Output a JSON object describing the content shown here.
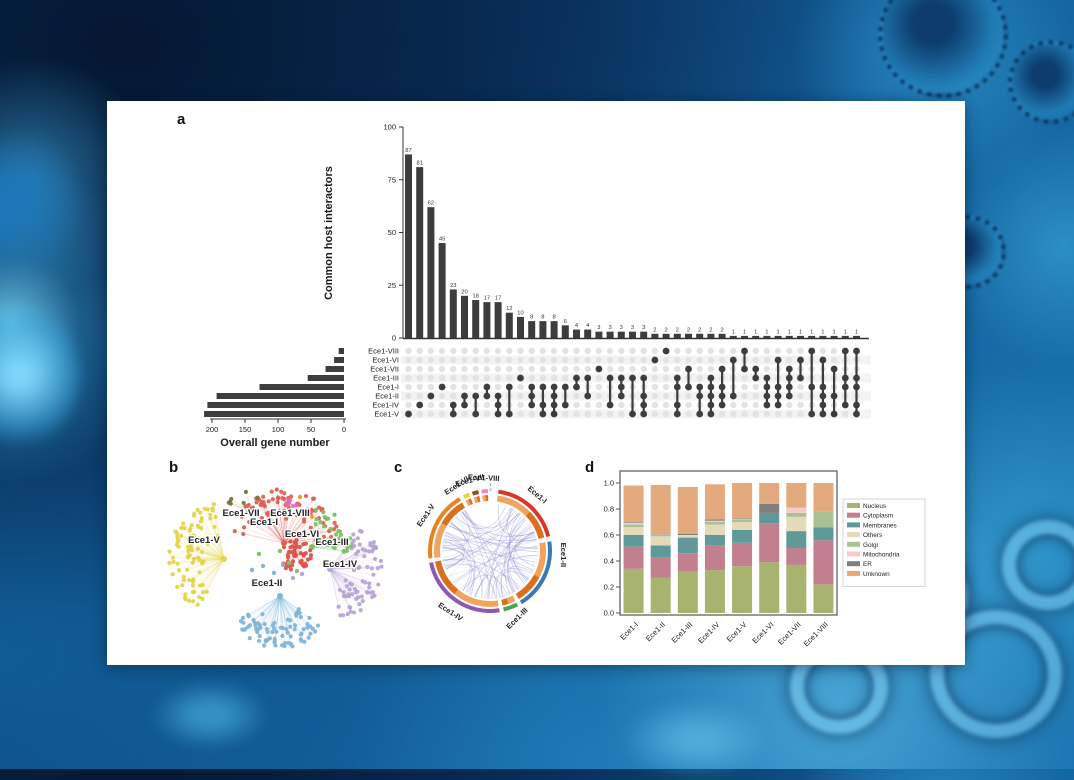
{
  "figure": {
    "panel_letters": {
      "a": "a",
      "b": "b",
      "c": "c",
      "d": "d"
    }
  },
  "chart_data": [
    {
      "id": "panel_a_upset",
      "type": "bar",
      "subtype": "upset",
      "panel_label": "a",
      "ylabel": "Common host interactors",
      "ylim": [
        0,
        100
      ],
      "yticks": [
        100,
        75,
        50,
        25,
        0
      ],
      "intersection_sizes": [
        87,
        81,
        62,
        45,
        23,
        20,
        18,
        17,
        17,
        12,
        10,
        8,
        8,
        8,
        6,
        4,
        4,
        3,
        3,
        3,
        3,
        3,
        2,
        2,
        2,
        2,
        2,
        2,
        2,
        1,
        1,
        1,
        1,
        1,
        1,
        1,
        1,
        1,
        1,
        1,
        1
      ],
      "memberships": [
        [
          7
        ],
        [
          6
        ],
        [
          5
        ],
        [
          4
        ],
        [
          6,
          7
        ],
        [
          5,
          6
        ],
        [
          5,
          7
        ],
        [
          4,
          5
        ],
        [
          5,
          6,
          7
        ],
        [
          4,
          7
        ],
        [
          3
        ],
        [
          4,
          5,
          6
        ],
        [
          4,
          6,
          7
        ],
        [
          4,
          5,
          6,
          7
        ],
        [
          4,
          6
        ],
        [
          3,
          4
        ],
        [
          3,
          5
        ],
        [
          2
        ],
        [
          3,
          6
        ],
        [
          3,
          4,
          5
        ],
        [
          3,
          7
        ],
        [
          3,
          5,
          6,
          7
        ],
        [
          1
        ],
        [
          0
        ],
        [
          3,
          4,
          6,
          7
        ],
        [
          2,
          4
        ],
        [
          4,
          5,
          7
        ],
        [
          3,
          4,
          5,
          6,
          7
        ],
        [
          2,
          4,
          5,
          6
        ],
        [
          1,
          5
        ],
        [
          0,
          2
        ],
        [
          2,
          3
        ],
        [
          3,
          4,
          5,
          6
        ],
        [
          1,
          4,
          5,
          6
        ],
        [
          2,
          3,
          4,
          5
        ],
        [
          1,
          3
        ],
        [
          0,
          4,
          7
        ],
        [
          1,
          4,
          5,
          6,
          7
        ],
        [
          2,
          5,
          7
        ],
        [
          0,
          3,
          4,
          6
        ],
        [
          0,
          3,
          4,
          6,
          7
        ]
      ],
      "sets": [
        {
          "label": "Ece1-VIII",
          "size": 8
        },
        {
          "label": "Ece1-VI",
          "size": 15
        },
        {
          "label": "Ece1-VII",
          "size": 28
        },
        {
          "label": "Ece1-III",
          "size": 55
        },
        {
          "label": "Ece1-I",
          "size": 128
        },
        {
          "label": "Ece1-II",
          "size": 193
        },
        {
          "label": "Ece1-IV",
          "size": 207
        },
        {
          "label": "Ece1-V",
          "size": 212
        }
      ],
      "set_axis_label": "Overall gene number",
      "set_ticks": [
        200,
        150,
        100,
        50,
        0
      ],
      "bar_color": "#3d3d3d",
      "dot_inactive_color": "#e3e3e3",
      "stripe_color": "#f3f3f3"
    },
    {
      "id": "panel_b_network",
      "type": "scatter",
      "subtype": "network",
      "panel_label": "b",
      "clusters": [
        {
          "label": "Ece1-V",
          "color": "#e3d44d",
          "hub": [
            62,
            106
          ],
          "angles": [
            115,
            260
          ],
          "radius": [
            16,
            56
          ],
          "count": 88,
          "label_xy": [
            42,
            90
          ]
        },
        {
          "label": "Ece1-IV",
          "color": "#b7a4d8",
          "hub": [
            168,
            116
          ],
          "angles": [
            -65,
            80
          ],
          "radius": [
            16,
            52
          ],
          "count": 75,
          "label_xy": [
            178,
            114
          ]
        },
        {
          "label": "Ece1-II",
          "color": "#82b5da",
          "hub": [
            118,
            143
          ],
          "angles": [
            30,
            150
          ],
          "radius": [
            16,
            52
          ],
          "count": 80,
          "label_xy": [
            105,
            133
          ]
        },
        {
          "label": "Ece1-I",
          "color": "#e06055",
          "hub": [
            122,
            90
          ],
          "angles": [
            -178,
            -2
          ],
          "radius": [
            18,
            55
          ],
          "count": 82,
          "label_xy": [
            102,
            72
          ]
        },
        {
          "label": "Ece1-III",
          "color": "#7cc163",
          "hub": [
            150,
            94
          ],
          "angles": [
            -88,
            10
          ],
          "radius": [
            10,
            40
          ],
          "count": 26,
          "label_xy": [
            170,
            92
          ]
        },
        {
          "label": "Ece1-VI",
          "color": "#df5248",
          "hub": [
            133,
            102
          ],
          "angles": [
            0,
            360
          ],
          "radius": [
            2,
            16
          ],
          "count": 42,
          "label_xy": [
            140,
            84
          ]
        },
        {
          "label": "Ece1-VII",
          "color": "#77763c",
          "hub": [
            90,
            60
          ],
          "angles": [
            -165,
            -45
          ],
          "radius": [
            6,
            26
          ],
          "count": 7,
          "label_xy": [
            79,
            63
          ]
        },
        {
          "label": "Ece1-VIII",
          "color": "#e468b8",
          "hub": [
            126,
            50
          ],
          "angles": [
            -60,
            60
          ],
          "radius": [
            2,
            9
          ],
          "count": 3,
          "label_xy": [
            128,
            63
          ]
        }
      ],
      "extra_dots": [
        {
          "color": "#f09d2c",
          "points": [
            [
              138,
              44
            ],
            [
              150,
              64
            ]
          ]
        },
        {
          "color": "#7cc163",
          "points": [
            [
              118,
              98
            ],
            [
              127,
              110
            ],
            [
              97,
              101
            ],
            [
              135,
              118
            ]
          ]
        },
        {
          "color": "#82b5da",
          "points": [
            [
              101,
              113
            ],
            [
              112,
              120
            ],
            [
              90,
              117
            ],
            [
              121,
              112
            ]
          ]
        },
        {
          "color": "#b7a4d8",
          "points": [
            [
              140,
              121
            ],
            [
              131,
              125
            ]
          ]
        }
      ]
    },
    {
      "id": "panel_c_chord",
      "type": "pie",
      "subtype": "chord",
      "panel_label": "c",
      "segments": [
        {
          "label": "Ece1-I",
          "color": "#d6392c",
          "start": 8,
          "end": 76,
          "label_angle": 40,
          "label_rot": 40
        },
        {
          "label": "Ece1-II",
          "color": "#3c79b4",
          "start": 81,
          "end": 149,
          "label_angle": 93,
          "label_rot": 90
        },
        {
          "label": "Ece1-III",
          "color": "#4ba64f",
          "start": 153,
          "end": 167,
          "label_angle": 158,
          "label_rot": -45
        },
        {
          "label": "Ece1-IV",
          "color": "#9059ae",
          "start": 171,
          "end": 259,
          "label_angle": 213,
          "label_rot": 33
        },
        {
          "label": "Ece1-V",
          "color": "#e8831d",
          "start": 263,
          "end": 330,
          "label_angle": 299,
          "label_rot": -55
        },
        {
          "label": "Ece1-VI",
          "color": "#efd32b",
          "start": 334,
          "end": 340,
          "label_angle": 333,
          "label_rot": -33
        },
        {
          "label": "Ece1-VII",
          "color": "#9a4a21",
          "start": 343,
          "end": 349,
          "label_angle": 344,
          "label_rot": -15
        },
        {
          "label": "Ece1-VIII",
          "color": "#ef86c0",
          "start": 352,
          "end": 358,
          "label_angle": 355,
          "label_rot": 3
        }
      ],
      "sub_labels": [
        "1",
        "2"
      ],
      "inner_ring_colors": [
        "#f2a45f",
        "#dc6f1b"
      ],
      "chord_colors": [
        "#7566c9",
        "#a4c4e6"
      ]
    },
    {
      "id": "panel_d_localization",
      "type": "bar",
      "subtype": "stacked",
      "panel_label": "d",
      "categories": [
        "Ece1-I",
        "Ece1-II",
        "Ece1-III",
        "Ece1-IV",
        "Ece1-V",
        "Ece1-VI",
        "Ece1-VII",
        "Ece1-VIII"
      ],
      "series": [
        {
          "name": "Nucleus",
          "color": "#a7b36e",
          "values": [
            0.34,
            0.27,
            0.32,
            0.33,
            0.36,
            0.39,
            0.37,
            0.22
          ]
        },
        {
          "name": "Cytoplasm",
          "color": "#c2808f",
          "values": [
            0.17,
            0.16,
            0.14,
            0.19,
            0.18,
            0.3,
            0.13,
            0.34
          ]
        },
        {
          "name": "Membranes",
          "color": "#5f9999",
          "values": [
            0.09,
            0.09,
            0.12,
            0.08,
            0.1,
            0.08,
            0.13,
            0.1
          ]
        },
        {
          "name": "Others",
          "color": "#e4dab8",
          "values": [
            0.06,
            0.07,
            0.02,
            0.08,
            0.06,
            0.0,
            0.11,
            0.0
          ]
        },
        {
          "name": "Golgi",
          "color": "#a9c194",
          "values": [
            0.02,
            0.01,
            0.0,
            0.02,
            0.02,
            0.0,
            0.03,
            0.12
          ]
        },
        {
          "name": "Mitochondria",
          "color": "#f6ccc8",
          "values": [
            0.015,
            0.005,
            0.0,
            0.01,
            0.005,
            0.0,
            0.04,
            0.0
          ]
        },
        {
          "name": "ER",
          "color": "#7f7f7f",
          "values": [
            0.005,
            0.005,
            0.01,
            0.01,
            0.005,
            0.07,
            0.0,
            0.0
          ]
        },
        {
          "name": "Unknown",
          "color": "#e4a97d",
          "values": [
            0.28,
            0.375,
            0.36,
            0.27,
            0.27,
            0.16,
            0.19,
            0.22
          ]
        }
      ],
      "yticks": [
        1.0,
        0.8,
        0.6,
        0.4,
        0.2,
        0.0
      ],
      "ylim": [
        0,
        1.0
      ],
      "legend_position": "right"
    }
  ]
}
